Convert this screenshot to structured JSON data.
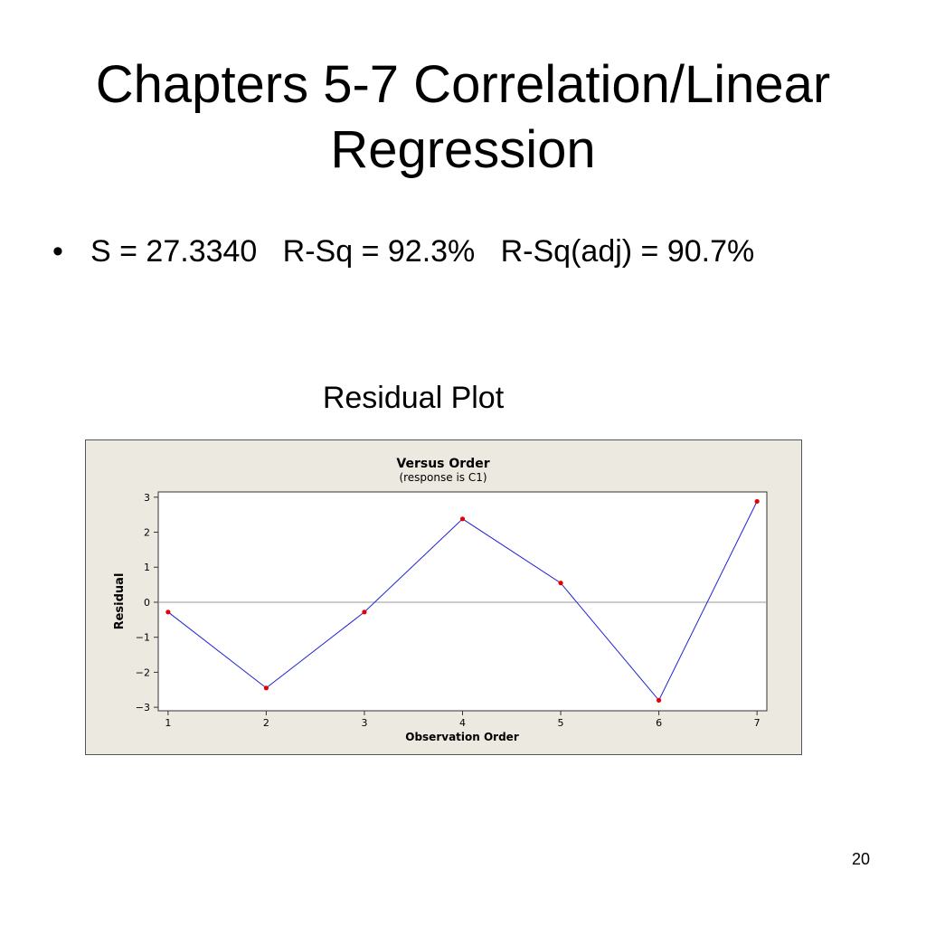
{
  "slide": {
    "title": "Chapters 5-7 Correlation/Linear Regression",
    "bullet": "S = 27.3340   R-Sq = 92.3%   R-Sq(adj) = 90.7%",
    "plot_heading": "Residual Plot",
    "page_number": "20"
  },
  "chart_data": {
    "type": "line",
    "title": "Versus Order",
    "subtitle": "(response is C1)",
    "xlabel": "Observation Order",
    "ylabel": "Residual",
    "x": [
      1,
      2,
      3,
      4,
      5,
      6,
      7
    ],
    "values": [
      -0.28,
      -2.45,
      -0.28,
      2.38,
      0.55,
      -2.8,
      2.88
    ],
    "xlim": [
      0.9,
      7.1
    ],
    "ylim": [
      -3.1,
      3.15
    ],
    "xticks": [
      1,
      2,
      3,
      4,
      5,
      6,
      7
    ],
    "yticks": [
      3,
      2,
      1,
      0,
      -1,
      -2,
      -3
    ],
    "ytick_labels": [
      "3",
      "2",
      "1",
      "0",
      "−1",
      "−2",
      "−3"
    ],
    "reference_line": 0,
    "grid": false,
    "colors": {
      "line": "#1f22d6",
      "marker": "#e60000",
      "reference": "#9a9a9a",
      "figure_bg": "#ece9e0",
      "plot_bg": "#ffffff"
    }
  }
}
